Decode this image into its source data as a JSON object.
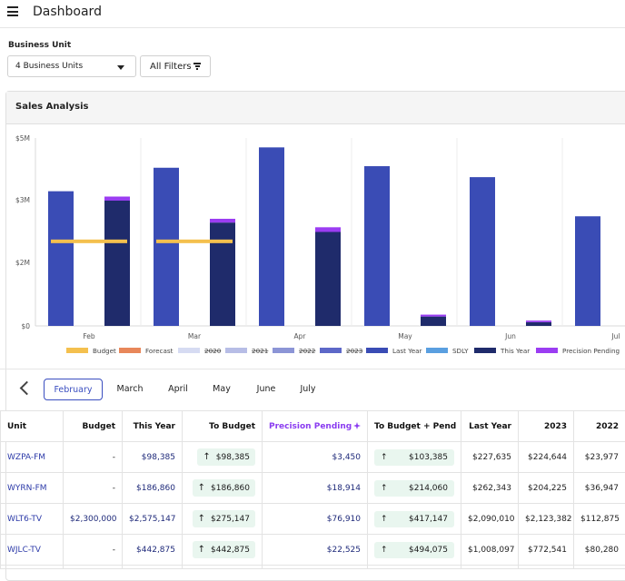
{
  "header": {
    "title": "Dashboard",
    "menu_icon": "hamburger-menu-icon"
  },
  "filters": {
    "business_unit_label": "Business Unit",
    "business_unit_value": "4 Business Units",
    "all_filters_label": "All Filters"
  },
  "card": {
    "title": "Sales Analysis"
  },
  "colors": {
    "budget": "#f4c04e",
    "forecast": "#e8875a",
    "y2020": "#d6dbf2",
    "y2021": "#b7bde6",
    "y2022": "#8c95d6",
    "y2023": "#5d68c8",
    "last_year": "#3a4cb5",
    "sdly": "#5a9fe0",
    "this_year": "#1f2b6b",
    "precision_pending": "#9b3df2"
  },
  "chart_data": {
    "type": "bar",
    "categories": [
      "Feb",
      "Mar",
      "Apr",
      "May",
      "Jun",
      "Jul"
    ],
    "y_ticks": [
      "$5M",
      "$3M",
      "$2M",
      "$0"
    ],
    "ylim": [
      0,
      6000000
    ],
    "grid": true,
    "legend_position": "bottom",
    "legend": [
      {
        "name": "Budget",
        "key": "budget",
        "struck": false
      },
      {
        "name": "Forecast",
        "key": "forecast",
        "struck": false
      },
      {
        "name": "2020",
        "key": "y2020",
        "struck": true
      },
      {
        "name": "2021",
        "key": "y2021",
        "struck": true
      },
      {
        "name": "2022",
        "key": "y2022",
        "struck": true
      },
      {
        "name": "2023",
        "key": "y2023",
        "struck": true
      },
      {
        "name": "Last Year",
        "key": "last_year",
        "struck": false
      },
      {
        "name": "SDLY",
        "key": "sdly",
        "struck": false
      },
      {
        "name": "This Year",
        "key": "this_year",
        "struck": false
      },
      {
        "name": "Precision Pending",
        "key": "precision_pending",
        "struck": false
      }
    ],
    "series": [
      {
        "name": "Last Year",
        "values": [
          4300000,
          5050000,
          5700000,
          5100000,
          4750000,
          3500000
        ]
      },
      {
        "name": "This Year",
        "values": [
          4000000,
          3300000,
          3000000,
          300000,
          120000,
          null
        ]
      },
      {
        "name": "Precision Pending",
        "values": [
          130000,
          120000,
          150000,
          60000,
          50000,
          null
        ]
      },
      {
        "name": "Budget",
        "values": [
          2700000,
          2700000,
          null,
          null,
          null,
          null
        ]
      }
    ]
  },
  "periods": {
    "tabs": [
      "February",
      "March",
      "April",
      "May",
      "June",
      "July"
    ],
    "active": "February"
  },
  "table": {
    "headers": {
      "unit": "Unit",
      "budget": "Budget",
      "this_year": "This Year",
      "to_budget": "To Budget",
      "precision_pending": "Precision Pending",
      "to_budget_pend": "To Budget + Pend",
      "last_year": "Last Year",
      "y2023": "2023",
      "y2022": "2022"
    },
    "rows": [
      {
        "unit": "WZPA-FM",
        "budget": "-",
        "this_year": "$98,385",
        "to_budget": "$98,385",
        "precision_pending": "$3,450",
        "to_budget_pend": "$103,385",
        "last_year": "$227,635",
        "y2023": "$224,644",
        "y2022": "$23,977"
      },
      {
        "unit": "WYRN-FM",
        "budget": "-",
        "this_year": "$186,860",
        "to_budget": "$186,860",
        "precision_pending": "$18,914",
        "to_budget_pend": "$214,060",
        "last_year": "$262,343",
        "y2023": "$204,225",
        "y2022": "$36,947"
      },
      {
        "unit": "WLT6-TV",
        "budget": "$2,300,000",
        "this_year": "$2,575,147",
        "to_budget": "$275,147",
        "precision_pending": "$76,910",
        "to_budget_pend": "$417,147",
        "last_year": "$2,090,010",
        "y2023": "$2,123,382",
        "y2022": "$112,875"
      },
      {
        "unit": "WJLC-TV",
        "budget": "-",
        "this_year": "$442,875",
        "to_budget": "$442,875",
        "precision_pending": "$22,525",
        "to_budget_pend": "$494,075",
        "last_year": "$1,008,097",
        "y2023": "$772,541",
        "y2022": "$80,280"
      }
    ]
  }
}
